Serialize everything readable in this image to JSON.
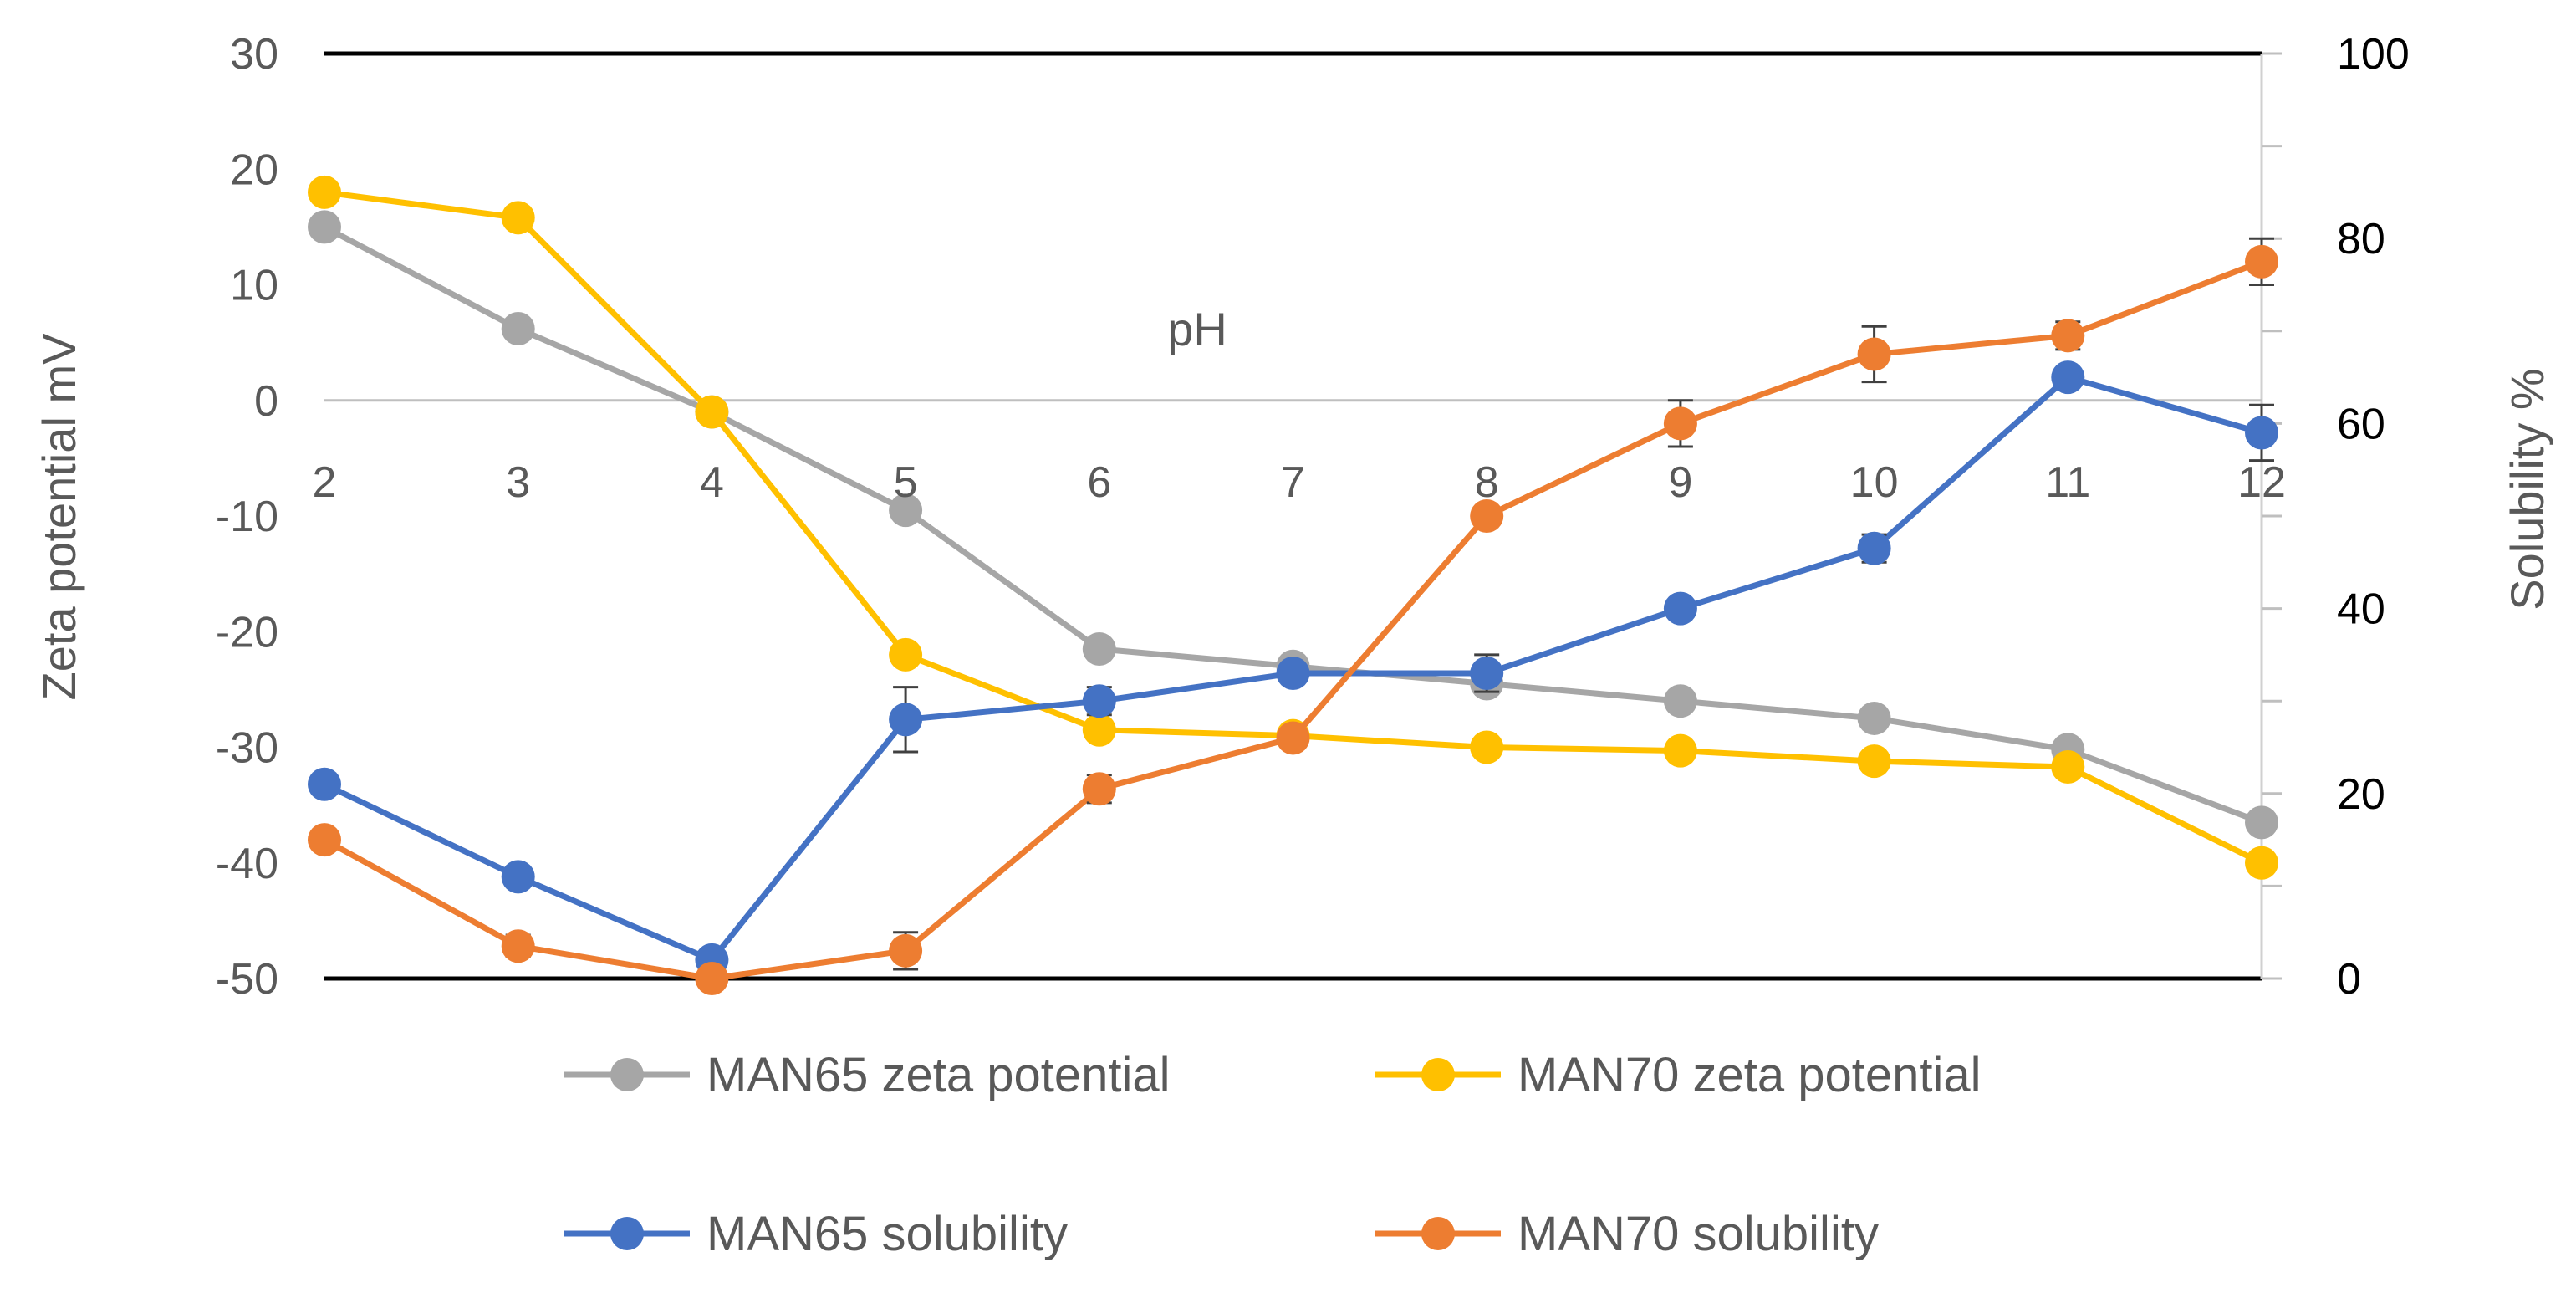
{
  "chart_data": {
    "type": "line",
    "title": "",
    "xlabel": "pH",
    "ylabel": "Zeta potential mV",
    "y2label": "Solubility %",
    "x": [
      2,
      3,
      4,
      5,
      6,
      7,
      8,
      9,
      10,
      11,
      12
    ],
    "x_tick_labels": [
      "2",
      "3",
      "4",
      "5",
      "6",
      "7",
      "8",
      "9",
      "10",
      "11",
      "12"
    ],
    "ylim": [
      -50,
      30
    ],
    "y_ticks": [
      30,
      20,
      10,
      0,
      -10,
      -20,
      -30,
      -40,
      -50
    ],
    "y_tick_labels": [
      "30",
      "20",
      "10",
      "0",
      "-10",
      "-20",
      "-30",
      "-40",
      "-50"
    ],
    "y2lim": [
      0,
      100
    ],
    "y2_ticks": [
      100,
      80,
      60,
      40,
      20,
      0
    ],
    "y2_tick_labels": [
      "100",
      "80",
      "60",
      "40",
      "20",
      "0"
    ],
    "legend_position": "bottom",
    "series": [
      {
        "name": "MAN65 zeta potential",
        "axis": "left",
        "color": "#a6a6a6",
        "values": [
          15,
          6.2,
          -1,
          -9.5,
          -21.5,
          -23,
          -24.5,
          -26,
          -27.5,
          -30.2,
          -36.5
        ],
        "errors": [
          0,
          0,
          0,
          0,
          0,
          0,
          0,
          0,
          0,
          0,
          0
        ]
      },
      {
        "name": "MAN70 zeta potential",
        "axis": "left",
        "color": "#ffc000",
        "values": [
          18,
          15.8,
          -1,
          -22,
          -28.5,
          -29,
          -30,
          -30.3,
          -31.2,
          -31.7,
          -40
        ],
        "errors": [
          0,
          0,
          0,
          0,
          0,
          0,
          0,
          0,
          0,
          0,
          0
        ]
      },
      {
        "name": "MAN65 solubility",
        "axis": "right",
        "color": "#4472c4",
        "values": [
          21,
          11,
          2,
          28,
          30,
          33,
          33,
          40,
          46.5,
          65,
          59
        ],
        "errors": [
          0,
          0,
          0,
          3.5,
          1.5,
          1,
          2,
          0,
          1.5,
          0,
          3
        ]
      },
      {
        "name": "MAN70 solubility",
        "axis": "right",
        "color": "#ed7d31",
        "values": [
          15,
          3.5,
          0,
          3,
          20.5,
          26,
          50,
          60,
          67.5,
          69.5,
          77.5
        ],
        "errors": [
          0,
          1.2,
          0,
          2,
          1.5,
          0,
          0,
          2.5,
          3,
          1.5,
          2.5
        ]
      }
    ]
  }
}
